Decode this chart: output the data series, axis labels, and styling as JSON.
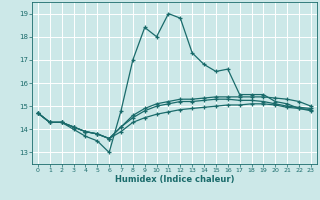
{
  "xlabel": "Humidex (Indice chaleur)",
  "xlim": [
    -0.5,
    23.5
  ],
  "ylim": [
    12.5,
    19.5
  ],
  "yticks": [
    13,
    14,
    15,
    16,
    17,
    18,
    19
  ],
  "xticks": [
    0,
    1,
    2,
    3,
    4,
    5,
    6,
    7,
    8,
    9,
    10,
    11,
    12,
    13,
    14,
    15,
    16,
    17,
    18,
    19,
    20,
    21,
    22,
    23
  ],
  "bg_color": "#cce8e8",
  "grid_color": "#ffffff",
  "line_color": "#1a6b6b",
  "line_width": 0.9,
  "marker_size": 3.5,
  "series": [
    {
      "x": [
        0,
        1,
        2,
        3,
        4,
        5,
        6,
        7,
        8,
        9,
        10,
        11,
        12,
        13,
        14,
        15,
        16,
        17,
        18,
        19,
        20,
        21,
        22,
        23
      ],
      "y": [
        14.7,
        14.3,
        14.3,
        14.0,
        13.7,
        13.5,
        13.0,
        14.8,
        17.0,
        18.4,
        18.0,
        19.0,
        18.8,
        17.3,
        16.8,
        16.5,
        16.6,
        15.5,
        15.5,
        15.5,
        15.2,
        15.1,
        14.9,
        14.8
      ]
    },
    {
      "x": [
        0,
        1,
        2,
        3,
        4,
        5,
        6,
        7,
        8,
        9,
        10,
        11,
        12,
        13,
        14,
        15,
        16,
        17,
        18,
        19,
        20,
        21,
        22,
        23
      ],
      "y": [
        14.7,
        14.3,
        14.3,
        14.1,
        13.9,
        13.8,
        13.6,
        14.1,
        14.6,
        14.9,
        15.1,
        15.2,
        15.3,
        15.3,
        15.35,
        15.4,
        15.4,
        15.4,
        15.4,
        15.4,
        15.35,
        15.3,
        15.2,
        15.0
      ]
    },
    {
      "x": [
        0,
        1,
        2,
        3,
        4,
        5,
        6,
        7,
        8,
        9,
        10,
        11,
        12,
        13,
        14,
        15,
        16,
        17,
        18,
        19,
        20,
        21,
        22,
        23
      ],
      "y": [
        14.7,
        14.3,
        14.3,
        14.1,
        13.9,
        13.8,
        13.6,
        14.1,
        14.5,
        14.8,
        15.0,
        15.1,
        15.2,
        15.2,
        15.25,
        15.3,
        15.3,
        15.25,
        15.25,
        15.2,
        15.1,
        15.0,
        14.95,
        14.9
      ]
    },
    {
      "x": [
        0,
        1,
        2,
        3,
        4,
        5,
        6,
        7,
        8,
        9,
        10,
        11,
        12,
        13,
        14,
        15,
        16,
        17,
        18,
        19,
        20,
        21,
        22,
        23
      ],
      "y": [
        14.7,
        14.3,
        14.3,
        14.1,
        13.9,
        13.8,
        13.6,
        13.9,
        14.3,
        14.5,
        14.65,
        14.75,
        14.85,
        14.9,
        14.95,
        15.0,
        15.05,
        15.05,
        15.1,
        15.1,
        15.05,
        14.95,
        14.9,
        14.85
      ]
    }
  ]
}
